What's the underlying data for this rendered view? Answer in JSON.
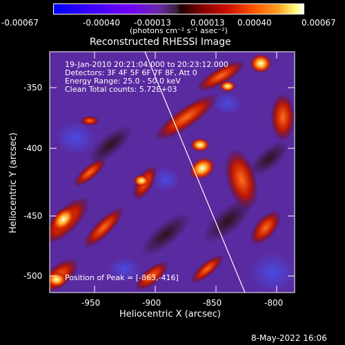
{
  "colorbar": {
    "ticks": [
      "-0.00067",
      "-0.00040",
      "-0.00013",
      "0.00013",
      "0.00040",
      "0.00067"
    ],
    "units_label": "(photons cm⁻² s⁻¹ asec⁻²)"
  },
  "plot": {
    "title": "Reconstructed RHESSI Image",
    "xlabel": "Heliocentric X (arcsec)",
    "ylabel": "Heliocentric Y (arcsec)",
    "xticks": [
      "-950",
      "-900",
      "-850",
      "-800"
    ],
    "yticks": [
      "-350",
      "-400",
      "-450",
      "-500"
    ],
    "info_lines": [
      "19-Jan-2010 20:21:04.000 to 20:23:12.000",
      "Detectors: 3F 4F 5F 6F 7F 8F, Att 0",
      "Energy Range: 25.0 - 50.0 keV",
      "Clean    Total counts: 5.72E+03"
    ],
    "peak_label": "Position of Peak = [-863,-416]",
    "xlim": [
      -985,
      -790
    ],
    "ylim": [
      -515,
      -318
    ]
  },
  "footer": {
    "timestamp": "8-May-2022 16:06"
  }
}
